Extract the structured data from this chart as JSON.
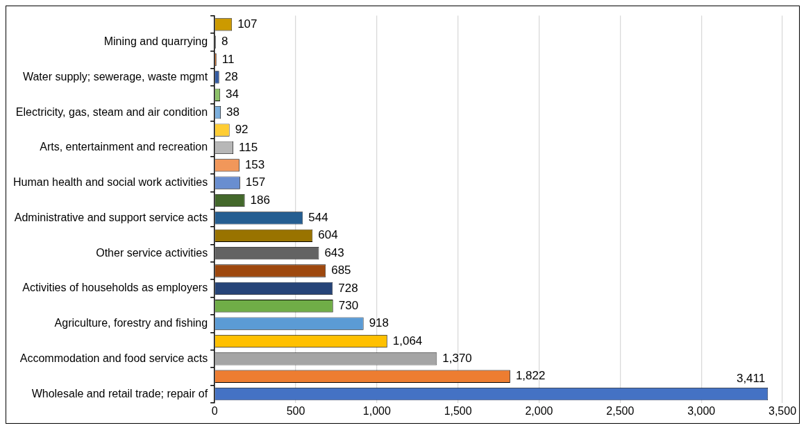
{
  "chart_data": {
    "type": "bar",
    "orientation": "horizontal",
    "categories": [
      null,
      "Mining and quarrying",
      null,
      "Water supply; sewerage, waste mgmt",
      null,
      "Electricity, gas, steam and air condition",
      null,
      "Arts, entertainment and recreation",
      null,
      "Human health and social work activities",
      null,
      "Administrative and support service acts",
      null,
      "Other service activities",
      null,
      "Activities of households as employers",
      null,
      "Agriculture, forestry and fishing",
      null,
      "Accommodation and food service acts",
      null,
      "Wholesale and retail trade; repair of"
    ],
    "values": [
      107,
      8,
      11,
      28,
      34,
      38,
      92,
      115,
      153,
      157,
      186,
      544,
      604,
      643,
      685,
      728,
      730,
      918,
      1064,
      1370,
      1822,
      3411
    ],
    "colors": [
      "#cc9a00",
      "#7e7e7e",
      "#c55a11",
      "#335aa1",
      "#8cc168",
      "#7cafdd",
      "#ffcd33",
      "#b7b7b7",
      "#f1975a",
      "#698ed0",
      "#43682b",
      "#255e91",
      "#997300",
      "#636363",
      "#9e480e",
      "#264478",
      "#70ad47",
      "#5b9bd5",
      "#ffc000",
      "#a5a5a5",
      "#ed7d31",
      "#4472c4"
    ],
    "xlim": [
      0,
      3500
    ],
    "xticks": [
      {
        "value": 0,
        "label": "0"
      },
      {
        "value": 500,
        "label": "500"
      },
      {
        "value": 1000,
        "label": "1,000"
      },
      {
        "value": 1500,
        "label": "1,500"
      },
      {
        "value": 2000,
        "label": "2,000"
      },
      {
        "value": 2500,
        "label": "2,500"
      },
      {
        "value": 3000,
        "label": "3,000"
      },
      {
        "value": 3500,
        "label": "3,500"
      }
    ],
    "value_labels": [
      "107",
      "8",
      "11",
      "28",
      "34",
      "38",
      "92",
      "115",
      "153",
      "157",
      "186",
      "544",
      "604",
      "643",
      "685",
      "728",
      "730",
      "918",
      "1,064",
      "1,370",
      "1,822",
      "3,411"
    ],
    "grid": "x",
    "legend": false
  }
}
